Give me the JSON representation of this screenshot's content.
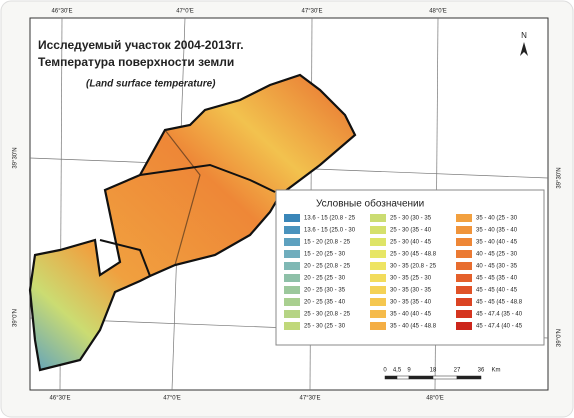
{
  "map": {
    "title_lines": [
      "Исследуемый участок 2004-2013гг.",
      "Температура поверхности земли"
    ],
    "subtitle": "(Land surface temperature)",
    "north": "N",
    "top_labels": [
      "46°30'E",
      "47°0'E",
      "47°30'E",
      "48°0'E"
    ],
    "bottom_labels": [
      "46°30'E",
      "47°0'E",
      "47°30'E",
      "48°0'E"
    ],
    "left_labels": [
      "39°30'N",
      "39°0'N"
    ],
    "right_labels": [
      "39°30'N",
      "39°0'N"
    ],
    "scale_labels": [
      "0",
      "4,5",
      "9",
      "18",
      "27",
      "36",
      "Km"
    ]
  },
  "legend": {
    "title": "Условные обозначении",
    "items": [
      {
        "label": "13.6 - 15 (20.8 - 25",
        "color": "#3a86b8"
      },
      {
        "label": "13.6 - 15 (25.0 - 30",
        "color": "#4a93bd"
      },
      {
        "label": "15 - 20 (20.8 - 25",
        "color": "#5ea1bf"
      },
      {
        "label": "15 - 20 (25 - 30",
        "color": "#6fadbd"
      },
      {
        "label": "20 - 25 (20.8 - 25",
        "color": "#7fb8b4"
      },
      {
        "label": "20 - 25 (25 - 30",
        "color": "#8ec0a8"
      },
      {
        "label": "20 - 25 (30 - 35",
        "color": "#9cc89c"
      },
      {
        "label": "20 - 25 (35 - 40",
        "color": "#a9cf90"
      },
      {
        "label": "25 - 30 (20.8 - 25",
        "color": "#b5d484"
      },
      {
        "label": "25 - 30 (25 - 30",
        "color": "#c0d87a"
      },
      {
        "label": "25 - 30 (30 - 35",
        "color": "#cbdc72"
      },
      {
        "label": "25 - 30 (35 - 40",
        "color": "#d5e06c"
      },
      {
        "label": "25 - 30 (40 - 45",
        "color": "#dee468"
      },
      {
        "label": "25 - 30 (45 - 48.8",
        "color": "#e7e665"
      },
      {
        "label": "30 - 35 (20.8 - 25",
        "color": "#eee462"
      },
      {
        "label": "30 - 35 (25 - 30",
        "color": "#f2dc5c"
      },
      {
        "label": "30 - 35 (30 - 35",
        "color": "#f4d256"
      },
      {
        "label": "30 - 35 (35 - 40",
        "color": "#f5c750"
      },
      {
        "label": "35 - 40 (40 - 45",
        "color": "#f5bb4a"
      },
      {
        "label": "35 - 40 (45 - 48.8",
        "color": "#f4ae44"
      },
      {
        "label": "35 - 40 (25 - 30",
        "color": "#f2a03f"
      },
      {
        "label": "35 - 40 (35 - 40",
        "color": "#f0943b"
      },
      {
        "label": "35 - 40 (40 - 45",
        "color": "#ee8737"
      },
      {
        "label": "40 - 45 (25 - 30",
        "color": "#eb7a33"
      },
      {
        "label": "40 - 45 (30 - 35",
        "color": "#e86d2f"
      },
      {
        "label": "45 - 45 (35 - 40",
        "color": "#e4602b"
      },
      {
        "label": "45 - 45 (40 - 45",
        "color": "#e05227"
      },
      {
        "label": "45 - 45 (45 - 48.8",
        "color": "#db4423"
      },
      {
        "label": "45 - 47.4 (35 - 40",
        "color": "#d5351f"
      },
      {
        "label": "45 - 47.4 (40 - 45",
        "color": "#cc261b"
      }
    ]
  }
}
